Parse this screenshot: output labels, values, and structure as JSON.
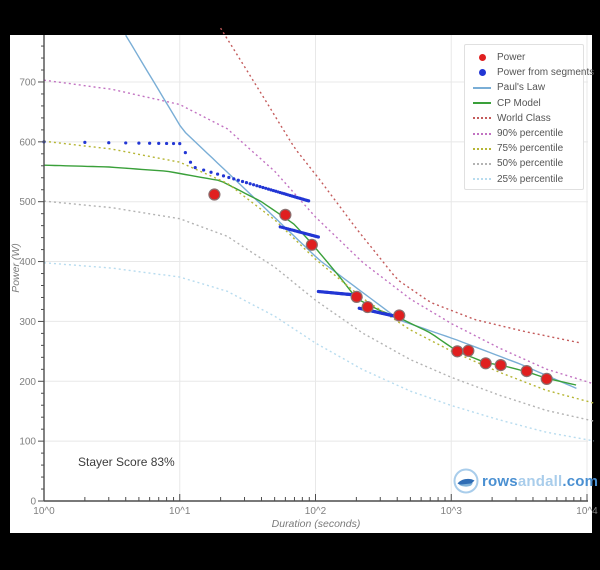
{
  "annotation": "Stayer Score 83%",
  "logo": {
    "prefix": "rows",
    "middle": "andall",
    "suffix": ".com"
  },
  "chart_data": {
    "type": "line",
    "title": "",
    "xlabel": "Duration (seconds)",
    "ylabel": "Power (W)",
    "x_axis": {
      "scale": "log",
      "range": [
        1,
        10000
      ],
      "tick_labels": [
        "10^0",
        "10^1",
        "10^2",
        "10^3",
        "10^4"
      ]
    },
    "y_axis": {
      "range": [
        0,
        760
      ],
      "ticks": [
        0,
        100,
        200,
        300,
        400,
        500,
        600,
        700
      ],
      "minor_step": 20
    },
    "grid": true,
    "legend_position": "top-right",
    "annotation": "Stayer Score 83%",
    "series": [
      {
        "name": "Power",
        "type": "scatter",
        "color": "#e01f1f",
        "edge_color": "#8a7070",
        "points": [
          [
            18,
            512
          ],
          [
            60,
            478
          ],
          [
            94,
            428
          ],
          [
            201,
            341
          ],
          [
            242,
            324
          ],
          [
            414,
            310
          ],
          [
            1108,
            250
          ],
          [
            1336,
            251
          ],
          [
            1794,
            230
          ],
          [
            2314,
            227
          ],
          [
            3596,
            217
          ],
          [
            5047,
            204
          ]
        ]
      },
      {
        "name": "Power from segments",
        "type": "scatter-small",
        "color": "#2236d4",
        "runs": [
          {
            "t0": 1,
            "t1": 10,
            "w0": 600,
            "w1": 597,
            "step": 1
          },
          {
            "t0": 11,
            "t1": 12,
            "w0": 582,
            "w1": 566,
            "step": 1
          },
          {
            "t0": 13,
            "t1": 90,
            "w0": 557,
            "w1": 501,
            "step": 2
          },
          {
            "t0": 55,
            "t1": 105,
            "w0": 458,
            "w1": 441,
            "step": 2
          },
          {
            "t0": 105,
            "t1": 200,
            "w0": 350,
            "w1": 344,
            "step": 2
          },
          {
            "t0": 210,
            "t1": 400,
            "w0": 322,
            "w1": 308,
            "step": 4
          }
        ]
      },
      {
        "name": "Paul's Law",
        "type": "line",
        "color": "#7aaed6",
        "anchors": [
          [
            4,
            778
          ],
          [
            10.5,
            620
          ],
          [
            33,
            513
          ],
          [
            106,
            403
          ],
          [
            418,
            302
          ],
          [
            1100,
            269
          ],
          [
            3200,
            229
          ],
          [
            9000,
            185
          ]
        ]
      },
      {
        "name": "CP Model",
        "type": "line",
        "color": "#3aa03a",
        "anchors": [
          [
            1,
            561
          ],
          [
            3,
            558
          ],
          [
            8,
            551
          ],
          [
            20,
            535
          ],
          [
            40,
            500
          ],
          [
            70,
            462
          ],
          [
            94,
            430
          ],
          [
            150,
            375
          ],
          [
            201,
            338
          ],
          [
            300,
            318
          ],
          [
            414,
            306
          ],
          [
            700,
            281
          ],
          [
            1108,
            250
          ],
          [
            1794,
            231
          ],
          [
            2314,
            227
          ],
          [
            3596,
            216
          ],
          [
            5047,
            205
          ],
          [
            9000,
            192
          ]
        ]
      },
      {
        "name": "World Class",
        "type": "dotted",
        "color": "#c45b5b",
        "anchors": [
          [
            20,
            790
          ],
          [
            40,
            680
          ],
          [
            70,
            590
          ],
          [
            108,
            536
          ],
          [
            200,
            455
          ],
          [
            400,
            370
          ],
          [
            700,
            332
          ],
          [
            1500,
            303
          ],
          [
            3500,
            283
          ],
          [
            9000,
            264
          ]
        ]
      },
      {
        "name": "90% percentile",
        "type": "dotted",
        "color": "#c273c2",
        "start": 703,
        "end": 195
      },
      {
        "name": "75% percentile",
        "type": "dotted",
        "color": "#b6b635",
        "start": 601,
        "end": 163
      },
      {
        "name": "50% percentile",
        "type": "dotted",
        "color": "#b3b3b3",
        "start": 501,
        "end": 133
      },
      {
        "name": "25% percentile",
        "type": "dotted",
        "color": "#b8dcef",
        "start": 398,
        "end": 100
      }
    ],
    "percentile_shape": [
      [
        0,
        1.0
      ],
      [
        0.5,
        0.97
      ],
      [
        1.0,
        0.92
      ],
      [
        1.35,
        0.84
      ],
      [
        1.7,
        0.7
      ],
      [
        2.0,
        0.55
      ],
      [
        2.35,
        0.4
      ],
      [
        2.7,
        0.28
      ],
      [
        3.0,
        0.2
      ],
      [
        3.35,
        0.12
      ],
      [
        3.7,
        0.05
      ],
      [
        4.06,
        0.0
      ]
    ]
  }
}
